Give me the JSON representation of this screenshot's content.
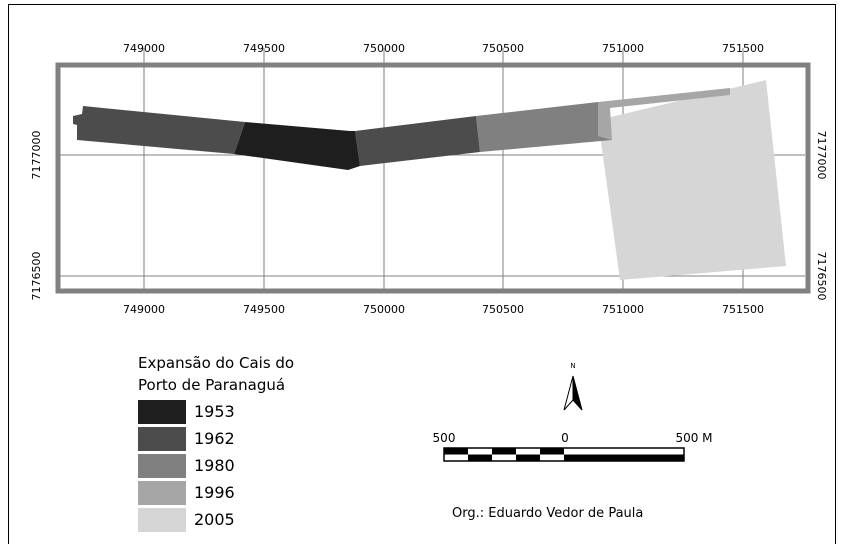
{
  "map": {
    "x_ticks": [
      "749000",
      "749500",
      "750000",
      "750500",
      "751000",
      "751500"
    ],
    "y_ticks_left": [
      "7177000",
      "7176500"
    ],
    "y_ticks_right": [
      "7177000",
      "7176500"
    ]
  },
  "legend": {
    "title_line1": "Expansão do Cais do",
    "title_line2": "Porto de Paranaguá",
    "items": [
      {
        "label": "1953",
        "color": "#1e1e1e"
      },
      {
        "label": "1962",
        "color": "#4c4c4c"
      },
      {
        "label": "1980",
        "color": "#808080"
      },
      {
        "label": "1996",
        "color": "#a6a6a6"
      },
      {
        "label": "2005",
        "color": "#d6d6d6"
      }
    ]
  },
  "north_arrow": {
    "label": "N"
  },
  "scale_bar": {
    "left_label": "500",
    "mid_label": "0",
    "right_label": "500 M"
  },
  "credit": "Org.: Eduardo Vedor de Paula"
}
